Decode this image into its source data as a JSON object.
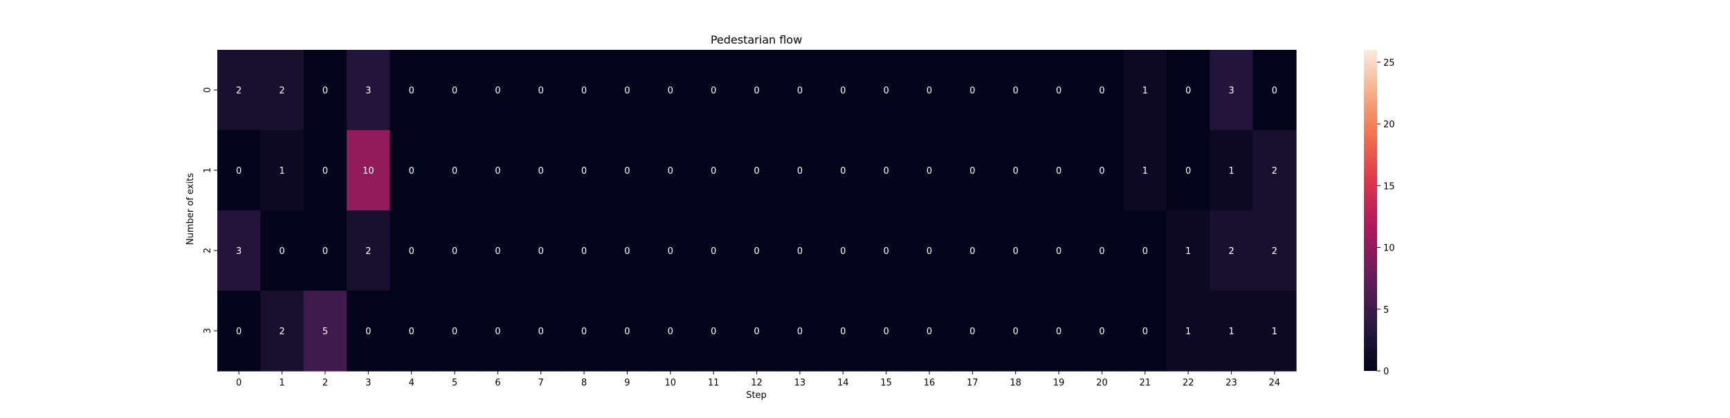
{
  "chart_data": {
    "type": "heatmap",
    "title": "Pedestarian flow",
    "xlabel": "Step",
    "ylabel": "Number of exits",
    "x_categories": [
      "0",
      "1",
      "2",
      "3",
      "4",
      "5",
      "6",
      "7",
      "8",
      "9",
      "10",
      "11",
      "12",
      "13",
      "14",
      "15",
      "16",
      "17",
      "18",
      "19",
      "20",
      "21",
      "22",
      "23",
      "24"
    ],
    "y_categories": [
      "0",
      "1",
      "2",
      "3"
    ],
    "values": [
      [
        2,
        2,
        0,
        3,
        0,
        0,
        0,
        0,
        0,
        0,
        0,
        0,
        0,
        0,
        0,
        0,
        0,
        0,
        0,
        0,
        0,
        1,
        0,
        3,
        0
      ],
      [
        0,
        1,
        0,
        10,
        0,
        0,
        0,
        0,
        0,
        0,
        0,
        0,
        0,
        0,
        0,
        0,
        0,
        0,
        0,
        0,
        0,
        1,
        0,
        1,
        2
      ],
      [
        3,
        0,
        0,
        2,
        0,
        0,
        0,
        0,
        0,
        0,
        0,
        0,
        0,
        0,
        0,
        0,
        0,
        0,
        0,
        0,
        0,
        0,
        1,
        2,
        2
      ],
      [
        0,
        2,
        5,
        0,
        0,
        0,
        0,
        0,
        0,
        0,
        0,
        0,
        0,
        0,
        0,
        0,
        0,
        0,
        0,
        0,
        0,
        0,
        1,
        1,
        1
      ]
    ],
    "colorbar": {
      "min": 0,
      "max": 26,
      "ticks": [
        "0",
        "5",
        "10",
        "15",
        "20",
        "25"
      ],
      "colormap": "rocket"
    }
  }
}
